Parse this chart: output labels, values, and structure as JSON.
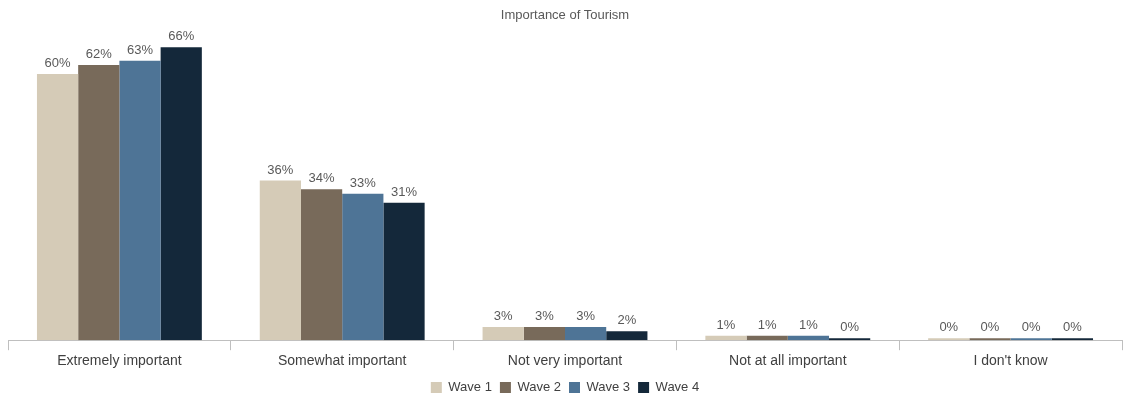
{
  "chart_data": {
    "type": "bar",
    "title": "Importance of Tourism",
    "categories": [
      "Extremely important",
      "Somewhat important",
      "Not very important",
      "Not at all important",
      "I don't know"
    ],
    "series": [
      {
        "name": "Wave 1",
        "color": "#d5cbb7",
        "values": [
          60,
          36,
          3,
          1,
          0
        ],
        "value_labels": [
          "60%",
          "36%",
          "3%",
          "1%",
          "0%"
        ]
      },
      {
        "name": "Wave 2",
        "color": "#786a5a",
        "values": [
          62,
          34,
          3,
          1,
          0
        ],
        "value_labels": [
          "62%",
          "34%",
          "3%",
          "1%",
          "0%"
        ]
      },
      {
        "name": "Wave 3",
        "color": "#4e7496",
        "values": [
          63,
          33,
          3,
          1,
          0
        ],
        "value_labels": [
          "63%",
          "33%",
          "3%",
          "1%",
          "0%"
        ]
      },
      {
        "name": "Wave 4",
        "color": "#14283a",
        "values": [
          66,
          31,
          2,
          0,
          0
        ],
        "value_labels": [
          "66%",
          "31%",
          "2%",
          "0%",
          "0%"
        ]
      }
    ],
    "grid": false,
    "legend": "bottom"
  }
}
